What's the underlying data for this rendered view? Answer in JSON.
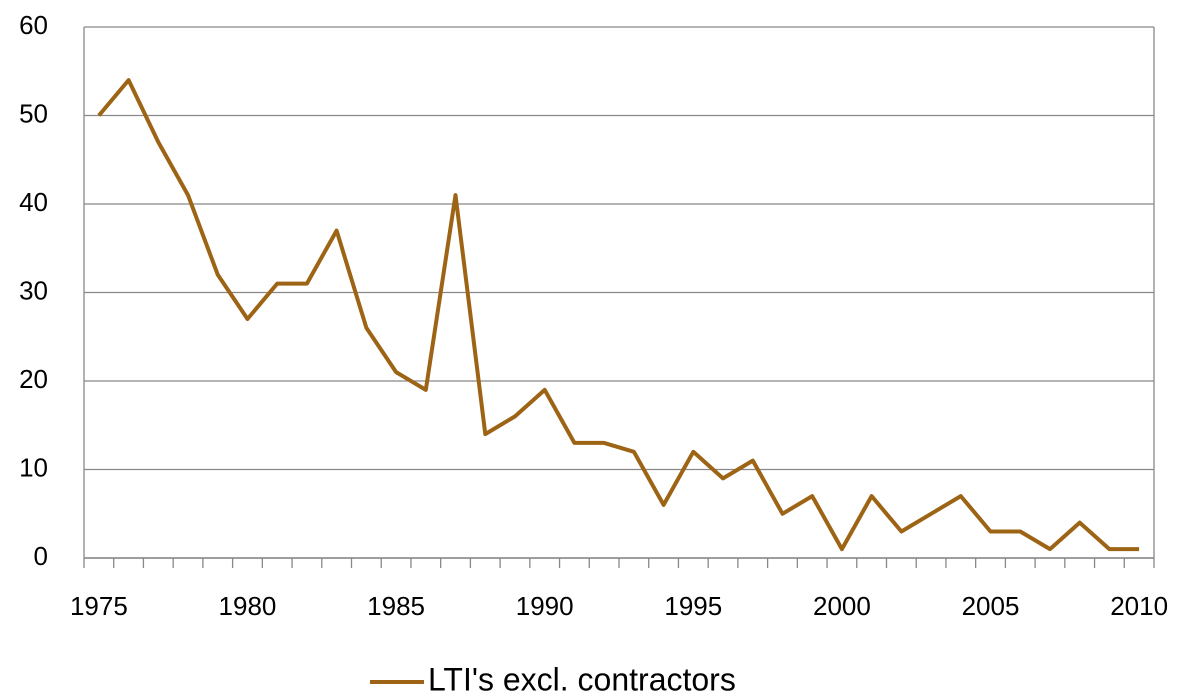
{
  "chart_data": {
    "type": "line",
    "categories": [
      "1975",
      null,
      null,
      null,
      null,
      "1980",
      null,
      null,
      null,
      null,
      "1985",
      null,
      null,
      null,
      null,
      "1990",
      null,
      null,
      null,
      null,
      "1995",
      null,
      null,
      null,
      null,
      "2000",
      null,
      null,
      null,
      null,
      "2005",
      null,
      null,
      null,
      null,
      "2010"
    ],
    "series": [
      {
        "name": "LTI's excl. contractors",
        "color": "#9c6414",
        "values": [
          50,
          54,
          47,
          41,
          32,
          27,
          31,
          31,
          37,
          26,
          21,
          19,
          41,
          14,
          16,
          19,
          13,
          13,
          12,
          6,
          12,
          9,
          11,
          5,
          7,
          1,
          7,
          3,
          5,
          7,
          3,
          3,
          1,
          4,
          1,
          1
        ]
      }
    ],
    "ylim": [
      0,
      60
    ],
    "yticks": [
      0,
      10,
      20,
      30,
      40,
      50,
      60
    ],
    "grid": true,
    "legend": "bottom"
  }
}
